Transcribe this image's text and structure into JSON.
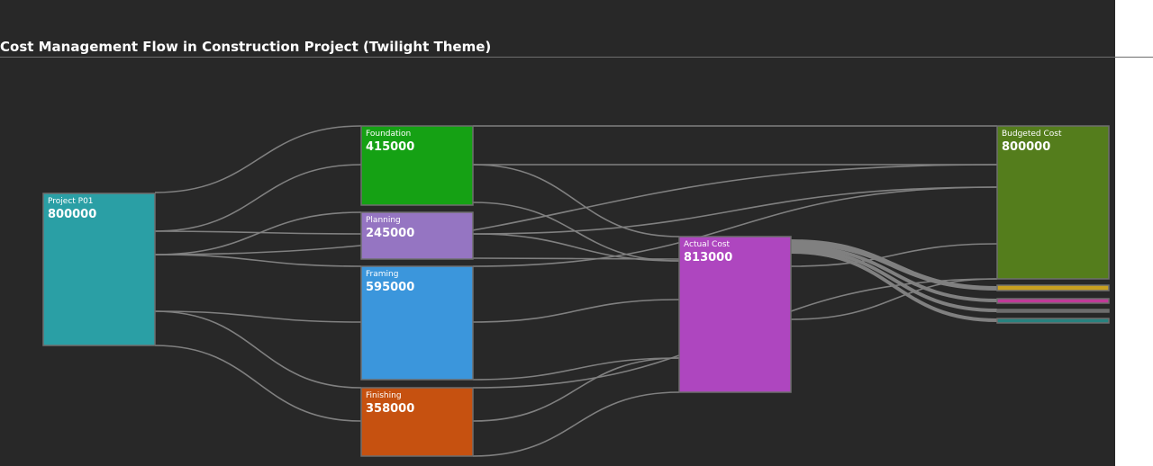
{
  "page": {
    "title": "Cost Management Flow in Construction Project (Twilight Theme)"
  },
  "chart_data": {
    "type": "sankey",
    "title": "Cost Management Flow in Construction Project (Twilight Theme)",
    "link_color": "#808080",
    "nodes": [
      {
        "id": "project",
        "name": "Project P01",
        "value": 800000,
        "color": "#2a9fa5"
      },
      {
        "id": "foundation",
        "name": "Foundation",
        "value": 415000,
        "color": "#15a114"
      },
      {
        "id": "planning",
        "name": "Planning",
        "value": 245000,
        "color": "#9575c2"
      },
      {
        "id": "framing",
        "name": "Framing",
        "value": 595000,
        "color": "#3b96dc"
      },
      {
        "id": "finishing",
        "name": "Finishing",
        "value": 358000,
        "color": "#c65110"
      },
      {
        "id": "actual",
        "name": "Actual Cost",
        "value": 813000,
        "color": "#ae46bf"
      },
      {
        "id": "budgeted",
        "name": "Budgeted Cost",
        "value": 800000,
        "color": "#547d1c"
      },
      {
        "id": "t1",
        "name": "",
        "value": null,
        "color": "#c9a020"
      },
      {
        "id": "t2",
        "name": "",
        "value": null,
        "color": "#c03a98"
      },
      {
        "id": "t3",
        "name": "",
        "value": null,
        "color": "#6c6c6c"
      },
      {
        "id": "t4",
        "name": "",
        "value": null,
        "color": "#28827f"
      }
    ]
  }
}
